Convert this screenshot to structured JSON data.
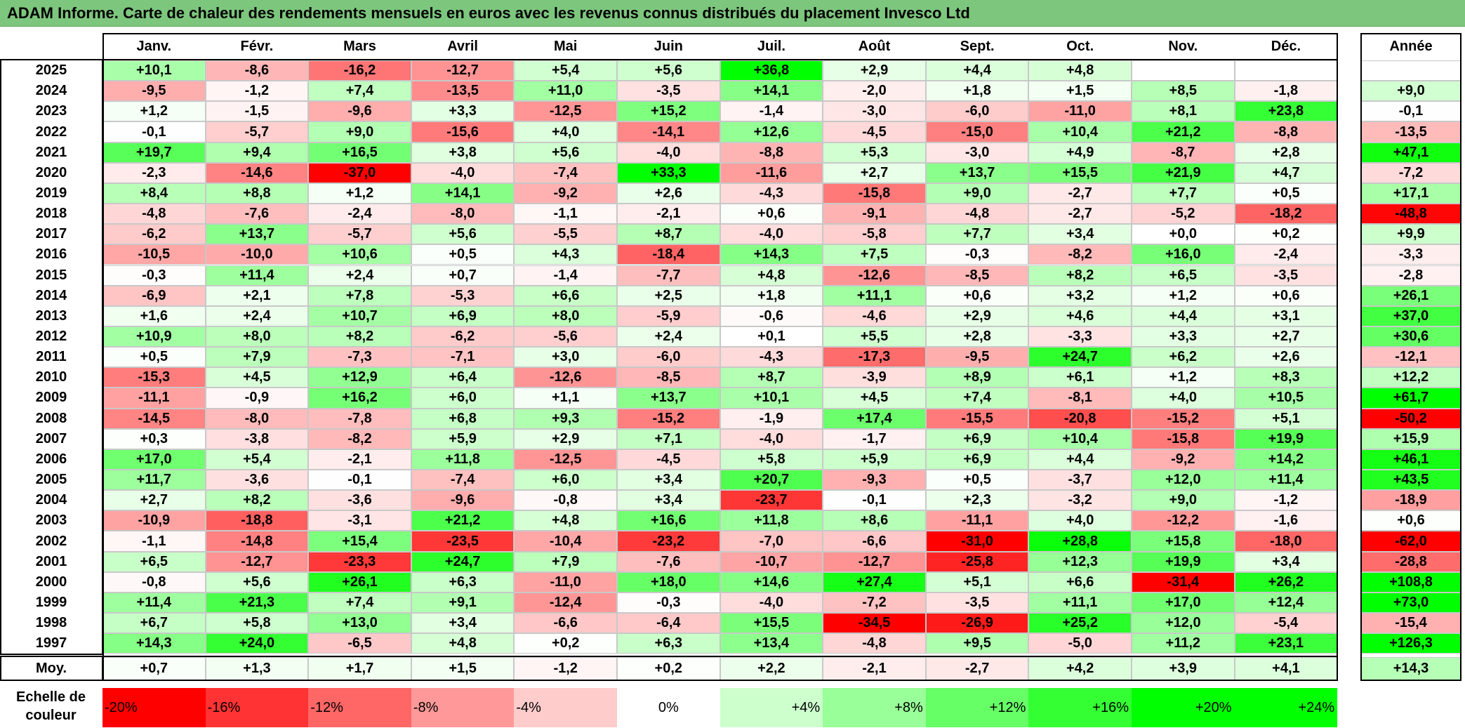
{
  "title": "ADAM Informe. Carte de chaleur des rendements mensuels en euros avec les revenus connus distribués du placement Invesco Ltd",
  "chart_data": {
    "type": "heatmap",
    "title": "ADAM Informe. Carte de chaleur des rendements mensuels en euros avec les revenus connus distribués du placement Invesco Ltd",
    "columns": [
      "Janv.",
      "Févr.",
      "Mars",
      "Avril",
      "Mai",
      "Juin",
      "Juil.",
      "Août",
      "Sept.",
      "Oct.",
      "Nov.",
      "Déc."
    ],
    "year_column_label": "Année",
    "rows": [
      {
        "year": "2025",
        "months": [
          "+10,1",
          "-8,6",
          "-16,2",
          "-12,7",
          "+5,4",
          "+5,6",
          "+36,8",
          "+2,9",
          "+4,4",
          "+4,8",
          "",
          ""
        ],
        "annual": ""
      },
      {
        "year": "2024",
        "months": [
          "-9,5",
          "-1,2",
          "+7,4",
          "-13,5",
          "+11,0",
          "-3,5",
          "+14,1",
          "-2,0",
          "+1,8",
          "+1,5",
          "+8,5",
          "-1,8"
        ],
        "annual": "+9,0"
      },
      {
        "year": "2023",
        "months": [
          "+1,2",
          "-1,5",
          "-9,6",
          "+3,3",
          "-12,5",
          "+15,2",
          "-1,4",
          "-3,0",
          "-6,0",
          "-11,0",
          "+8,1",
          "+23,8"
        ],
        "annual": "-0,1"
      },
      {
        "year": "2022",
        "months": [
          "-0,1",
          "-5,7",
          "+9,0",
          "-15,6",
          "+4,0",
          "-14,1",
          "+12,6",
          "-4,5",
          "-15,0",
          "+10,4",
          "+21,2",
          "-8,8"
        ],
        "annual": "-13,5"
      },
      {
        "year": "2021",
        "months": [
          "+19,7",
          "+9,4",
          "+16,5",
          "+3,8",
          "+5,6",
          "-4,0",
          "-8,8",
          "+5,3",
          "-3,0",
          "+4,9",
          "-8,7",
          "+2,8"
        ],
        "annual": "+47,1"
      },
      {
        "year": "2020",
        "months": [
          "-2,3",
          "-14,6",
          "-37,0",
          "-4,0",
          "-7,4",
          "+33,3",
          "-11,6",
          "+2,7",
          "+13,7",
          "+15,5",
          "+21,9",
          "+4,7"
        ],
        "annual": "-7,2"
      },
      {
        "year": "2019",
        "months": [
          "+8,4",
          "+8,8",
          "+1,2",
          "+14,1",
          "-9,2",
          "+2,6",
          "-4,3",
          "-15,8",
          "+9,0",
          "-2,7",
          "+7,7",
          "+0,5"
        ],
        "annual": "+17,1"
      },
      {
        "year": "2018",
        "months": [
          "-4,8",
          "-7,6",
          "-2,4",
          "-8,0",
          "-1,1",
          "-2,1",
          "+0,6",
          "-9,1",
          "-4,8",
          "-2,7",
          "-5,2",
          "-18,2"
        ],
        "annual": "-48,8"
      },
      {
        "year": "2017",
        "months": [
          "-6,2",
          "+13,7",
          "-5,7",
          "+5,6",
          "-5,5",
          "+8,7",
          "-4,0",
          "-5,8",
          "+7,7",
          "+3,4",
          "+0,0",
          "+0,2"
        ],
        "annual": "+9,9"
      },
      {
        "year": "2016",
        "months": [
          "-10,5",
          "-10,0",
          "+10,6",
          "+0,5",
          "+4,3",
          "-18,4",
          "+14,3",
          "+7,5",
          "-0,3",
          "-8,2",
          "+16,0",
          "-2,4"
        ],
        "annual": "-3,3"
      },
      {
        "year": "2015",
        "months": [
          "-0,3",
          "+11,4",
          "+2,4",
          "+0,7",
          "-1,4",
          "-7,7",
          "+4,8",
          "-12,6",
          "-8,5",
          "+8,2",
          "+6,5",
          "-3,5"
        ],
        "annual": "-2,8"
      },
      {
        "year": "2014",
        "months": [
          "-6,9",
          "+2,1",
          "+7,8",
          "-5,3",
          "+6,6",
          "+2,5",
          "+1,8",
          "+11,1",
          "+0,6",
          "+3,2",
          "+1,2",
          "+0,6"
        ],
        "annual": "+26,1"
      },
      {
        "year": "2013",
        "months": [
          "+1,6",
          "+2,4",
          "+10,7",
          "+6,9",
          "+8,0",
          "-5,9",
          "-0,6",
          "-4,6",
          "+2,9",
          "+4,6",
          "+4,4",
          "+3,1"
        ],
        "annual": "+37,0"
      },
      {
        "year": "2012",
        "months": [
          "+10,9",
          "+8,0",
          "+8,2",
          "-6,2",
          "-5,6",
          "+2,4",
          "+0,1",
          "+5,5",
          "+2,8",
          "-3,3",
          "+3,3",
          "+2,7"
        ],
        "annual": "+30,6"
      },
      {
        "year": "2011",
        "months": [
          "+0,5",
          "+7,9",
          "-7,3",
          "-7,1",
          "+3,0",
          "-6,0",
          "-4,3",
          "-17,3",
          "-9,5",
          "+24,7",
          "+6,2",
          "+2,6"
        ],
        "annual": "-12,1"
      },
      {
        "year": "2010",
        "months": [
          "-15,3",
          "+4,5",
          "+12,9",
          "+6,4",
          "-12,6",
          "-8,5",
          "+8,7",
          "-3,9",
          "+8,9",
          "+6,1",
          "+1,2",
          "+8,3"
        ],
        "annual": "+12,2"
      },
      {
        "year": "2009",
        "months": [
          "-11,1",
          "-0,9",
          "+16,2",
          "+6,0",
          "+1,1",
          "+13,7",
          "+10,1",
          "+4,5",
          "+7,4",
          "-8,1",
          "+4,0",
          "+10,5"
        ],
        "annual": "+61,7"
      },
      {
        "year": "2008",
        "months": [
          "-14,5",
          "-8,0",
          "-7,8",
          "+6,8",
          "+9,3",
          "-15,2",
          "-1,9",
          "+17,4",
          "-15,5",
          "-20,8",
          "-15,2",
          "+5,1"
        ],
        "annual": "-50,2"
      },
      {
        "year": "2007",
        "months": [
          "+0,3",
          "-3,8",
          "-8,2",
          "+5,9",
          "+2,9",
          "+7,1",
          "-4,0",
          "-1,7",
          "+6,9",
          "+10,4",
          "-15,8",
          "+19,9"
        ],
        "annual": "+15,9"
      },
      {
        "year": "2006",
        "months": [
          "+17,0",
          "+5,4",
          "-2,1",
          "+11,8",
          "-12,5",
          "-4,5",
          "+5,8",
          "+5,9",
          "+6,9",
          "+4,4",
          "-9,2",
          "+14,2"
        ],
        "annual": "+46,1"
      },
      {
        "year": "2005",
        "months": [
          "+11,7",
          "-3,6",
          "-0,1",
          "-7,4",
          "+6,0",
          "+3,4",
          "+20,7",
          "-9,3",
          "+0,5",
          "-3,7",
          "+12,0",
          "+11,4"
        ],
        "annual": "+43,5"
      },
      {
        "year": "2004",
        "months": [
          "+2,7",
          "+8,2",
          "-3,6",
          "-9,6",
          "-0,8",
          "+3,4",
          "-23,7",
          "-0,1",
          "+2,3",
          "-3,2",
          "+9,0",
          "-1,2"
        ],
        "annual": "-18,9"
      },
      {
        "year": "2003",
        "months": [
          "-10,9",
          "-18,8",
          "-3,1",
          "+21,2",
          "+4,8",
          "+16,6",
          "+11,8",
          "+8,6",
          "-11,1",
          "+4,0",
          "-12,2",
          "-1,6"
        ],
        "annual": "+0,6"
      },
      {
        "year": "2002",
        "months": [
          "-1,1",
          "-14,8",
          "+15,4",
          "-23,5",
          "-10,4",
          "-23,2",
          "-7,0",
          "-6,6",
          "-31,0",
          "+28,8",
          "+15,8",
          "-18,0"
        ],
        "annual": "-62,0"
      },
      {
        "year": "2001",
        "months": [
          "+6,5",
          "-12,7",
          "-23,3",
          "+24,7",
          "+7,9",
          "-7,6",
          "-10,7",
          "-12,7",
          "-25,8",
          "+12,3",
          "+19,9",
          "+3,4"
        ],
        "annual": "-28,8"
      },
      {
        "year": "2000",
        "months": [
          "-0,8",
          "+5,6",
          "+26,1",
          "+6,3",
          "-11,0",
          "+18,0",
          "+14,6",
          "+27,4",
          "+5,1",
          "+6,6",
          "-31,4",
          "+26,2"
        ],
        "annual": "+108,8"
      },
      {
        "year": "1999",
        "months": [
          "+11,4",
          "+21,3",
          "+7,4",
          "+9,1",
          "-12,4",
          "-0,3",
          "-4,0",
          "-7,2",
          "-3,5",
          "+11,1",
          "+17,0",
          "+12,4"
        ],
        "annual": "+73,0"
      },
      {
        "year": "1998",
        "months": [
          "+6,7",
          "+5,8",
          "+13,0",
          "+3,4",
          "-6,6",
          "-6,4",
          "+15,5",
          "-34,5",
          "-26,9",
          "+25,2",
          "+12,0",
          "-5,4"
        ],
        "annual": "-15,4"
      },
      {
        "year": "1997",
        "months": [
          "+14,3",
          "+24,0",
          "-6,5",
          "+4,8",
          "+0,2",
          "+6,3",
          "+13,4",
          "-4,8",
          "+9,5",
          "-5,0",
          "+11,2",
          "+23,1"
        ],
        "annual": "+126,3"
      }
    ],
    "average": {
      "label": "Moy.",
      "months": [
        "+0,7",
        "+1,3",
        "+1,7",
        "+1,5",
        "-1,2",
        "+0,2",
        "+2,2",
        "-2,1",
        "-2,7",
        "+4,2",
        "+3,9",
        "+4,1"
      ],
      "annual": "+14,3"
    },
    "color_scale": {
      "label": "Echelle de couleur",
      "stops": [
        "-20%",
        "-16%",
        "-12%",
        "-8%",
        "-4%",
        "0%",
        "+4%",
        "+8%",
        "+12%",
        "+16%",
        "+20%",
        "+24%"
      ],
      "negative_color": "#ff0000",
      "neutral_color": "#ffffff",
      "positive_color": "#00ff00"
    }
  }
}
